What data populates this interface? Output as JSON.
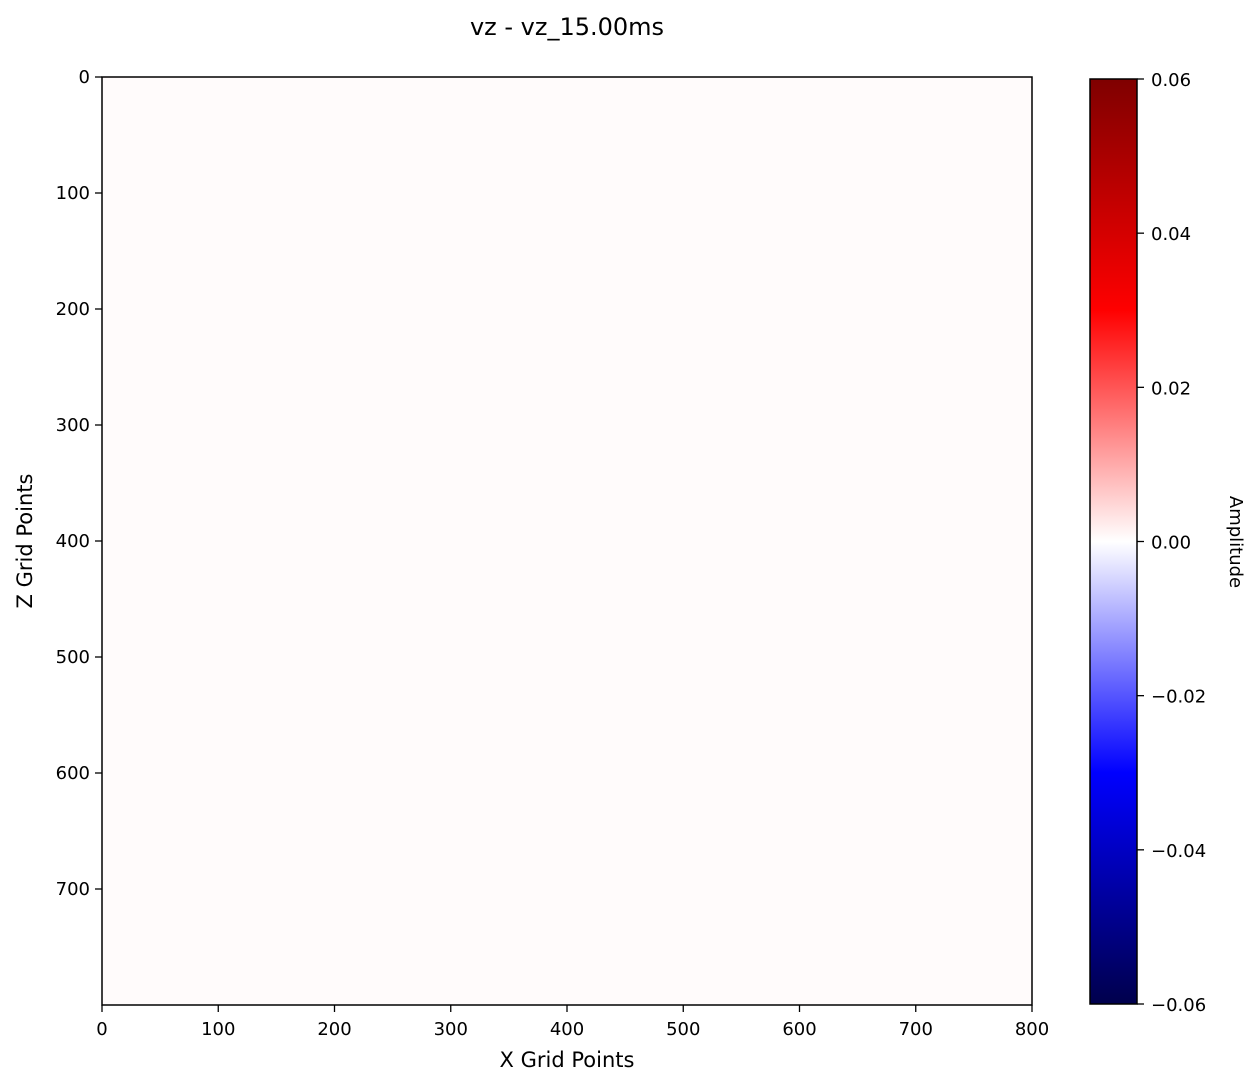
{
  "chart_data": {
    "type": "heatmap",
    "title": "vz - vz_15.00ms",
    "xlabel": "X Grid Points",
    "ylabel": "Z Grid Points",
    "xlim": [
      0,
      800
    ],
    "ylim": [
      800,
      0
    ],
    "x_ticks": [
      0,
      100,
      200,
      300,
      400,
      500,
      600,
      700,
      800
    ],
    "x_tick_labels": [
      "0",
      "100",
      "200",
      "300",
      "400",
      "500",
      "600",
      "700",
      "800"
    ],
    "y_ticks": [
      0,
      100,
      200,
      300,
      400,
      500,
      600,
      700
    ],
    "y_tick_labels": [
      "0",
      "100",
      "200",
      "300",
      "400",
      "500",
      "600",
      "700"
    ],
    "colormap": "seismic",
    "field_value": 0.0,
    "field_color": "#fffbfb",
    "colorbar": {
      "label": "Amplitude",
      "range": [
        -0.06,
        0.06
      ],
      "ticks": [
        0.06,
        0.04,
        0.02,
        0.0,
        -0.02,
        -0.04,
        -0.06
      ],
      "tick_labels": [
        "0.06",
        "0.04",
        "0.02",
        "0.00",
        "−0.02",
        "−0.04",
        "−0.06"
      ],
      "stops": [
        {
          "value": -0.06,
          "color": "#00004c"
        },
        {
          "value": -0.03,
          "color": "#0000ff"
        },
        {
          "value": 0.0,
          "color": "#ffffff"
        },
        {
          "value": 0.03,
          "color": "#ff0000"
        },
        {
          "value": 0.06,
          "color": "#7f0000"
        }
      ]
    }
  }
}
